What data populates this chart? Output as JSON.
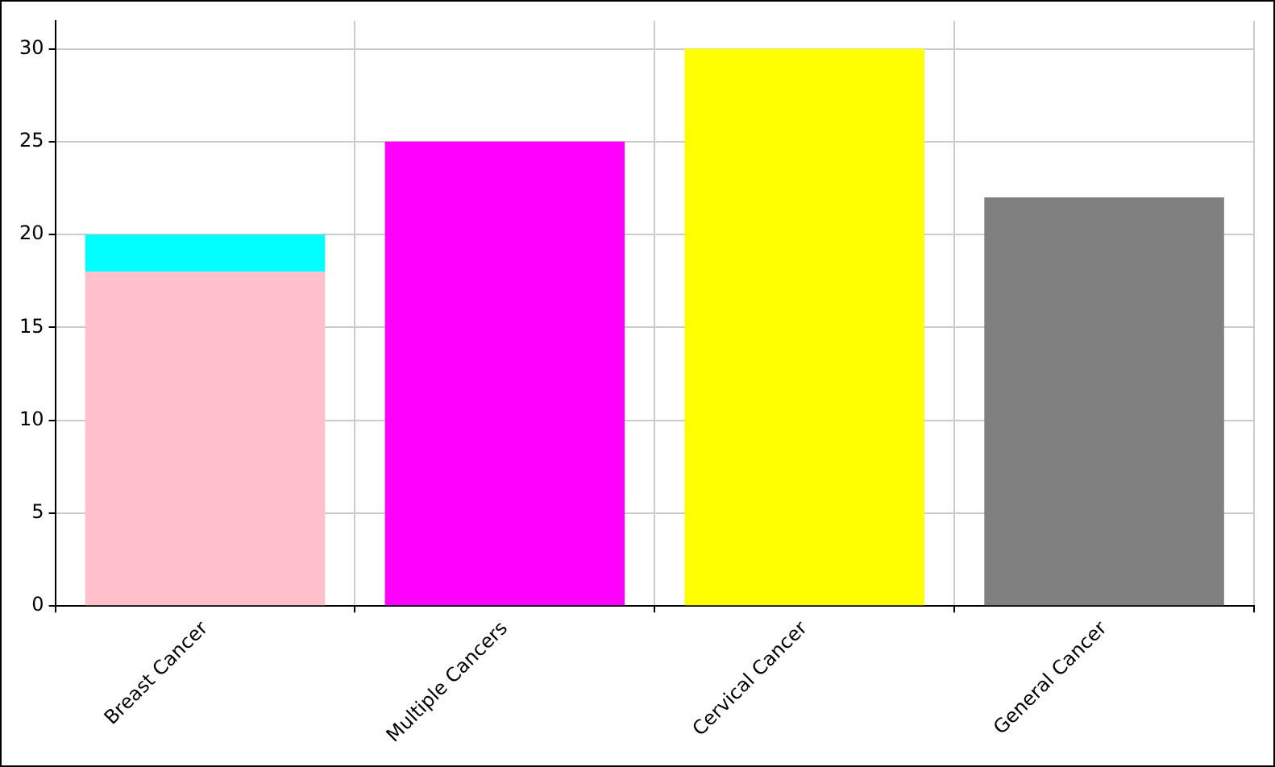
{
  "chart_data": {
    "type": "bar",
    "stacked": true,
    "categories": [
      "Breast Cancer",
      "Multiple Cancers",
      "Cervical Cancer",
      "General Cancer"
    ],
    "series": [
      {
        "colors": [
          "#ffc0cb",
          "#ff00ff",
          "#ffff00",
          "#808080"
        ],
        "values": [
          18,
          25,
          30,
          22
        ]
      },
      {
        "color": "#00ffff",
        "values": [
          2,
          null,
          null,
          null
        ]
      }
    ],
    "ylim": [
      0,
      31.5
    ],
    "yticks": [
      0,
      5,
      10,
      15,
      20,
      25,
      30
    ],
    "grid": true,
    "legend": false
  }
}
